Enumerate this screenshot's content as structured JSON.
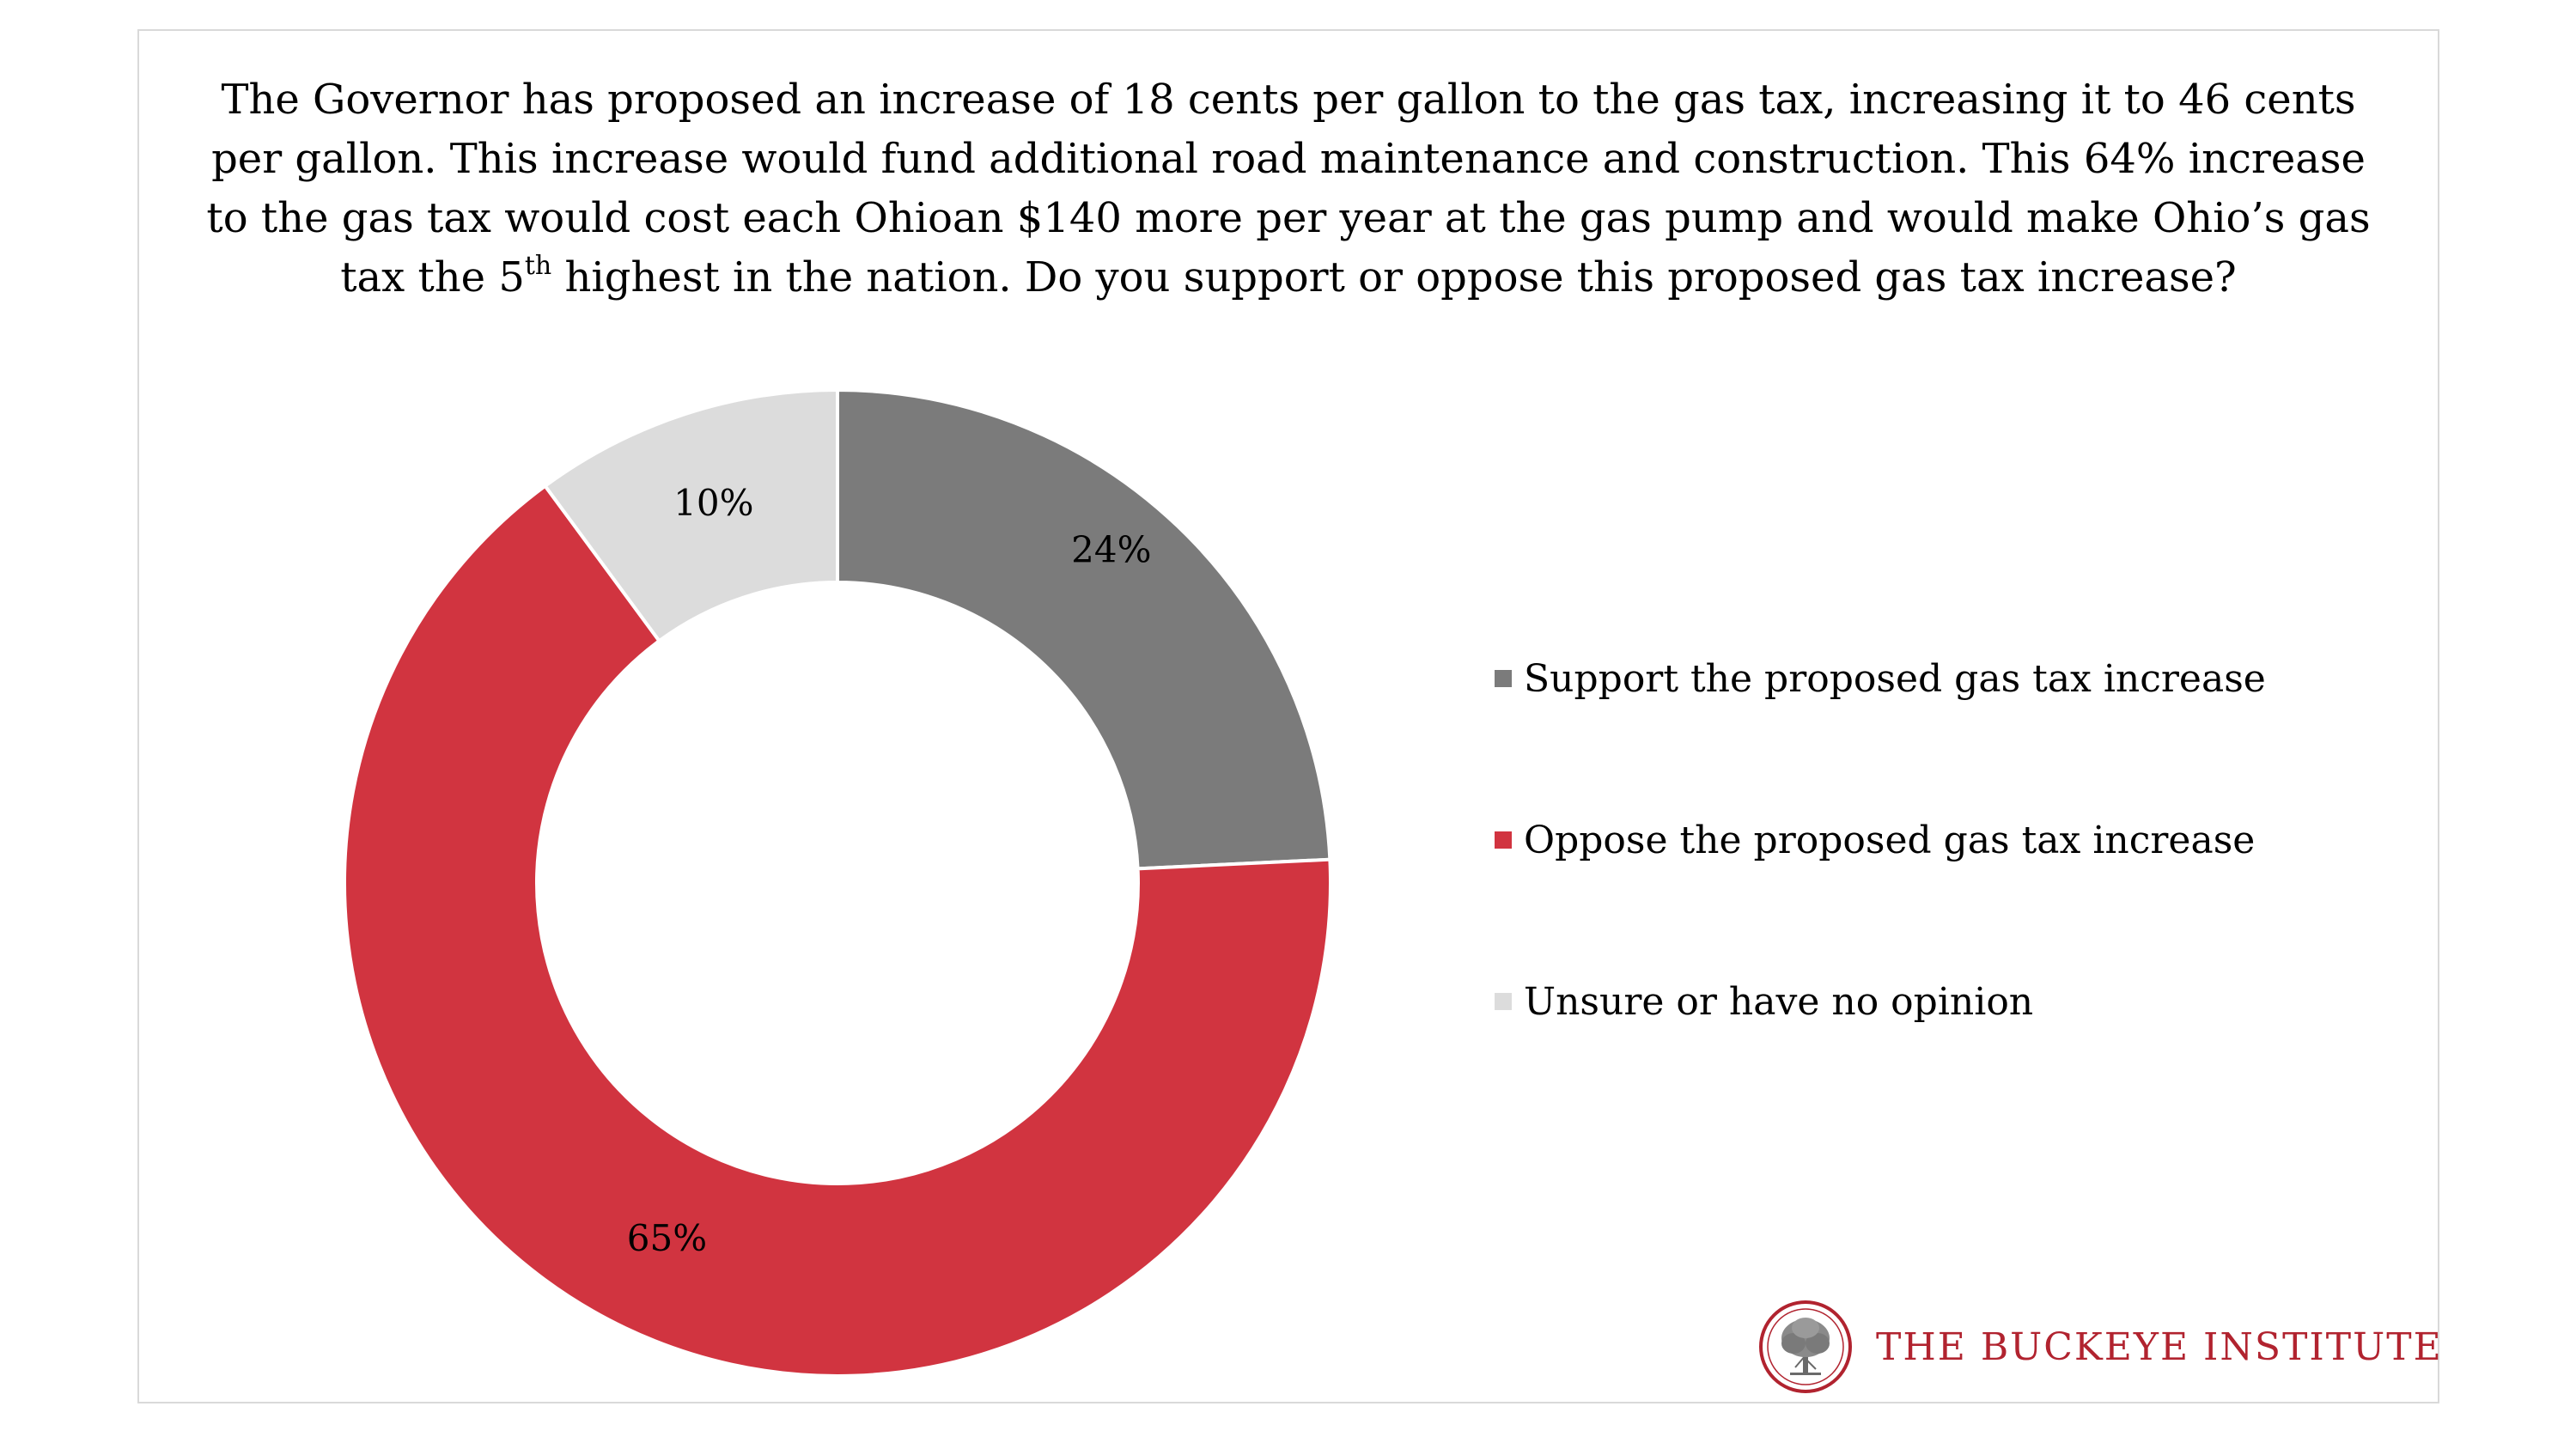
{
  "chart_data": {
    "type": "pie",
    "donut": true,
    "title_parts": [
      "The Governor has proposed an increase of 18 cents per gallon to the gas tax, increasing it to 46 cents per gallon. This increase would fund additional road maintenance and construction. This 64% increase to the gas tax would cost each Ohioan $140 more per year at the gas pump and would make Ohio’s gas tax the 5",
      "th",
      " highest in the nation. Do you support or oppose this proposed gas tax increase?"
    ],
    "categories": [
      "Support the proposed gas tax increase",
      "Oppose the proposed gas tax increase",
      "Unsure or have no opinion"
    ],
    "values": [
      24,
      65,
      10
    ],
    "value_labels": [
      "24%",
      "65%",
      "10%"
    ],
    "colors": [
      "#7b7b7b",
      "#d13440",
      "#dcdcdc"
    ],
    "legend_position": "right"
  },
  "branding": {
    "name": "THE BUCKEYE INSTITUTE",
    "color": "#b1232f",
    "logo_icon": "buckeye-tree-seal-icon"
  }
}
